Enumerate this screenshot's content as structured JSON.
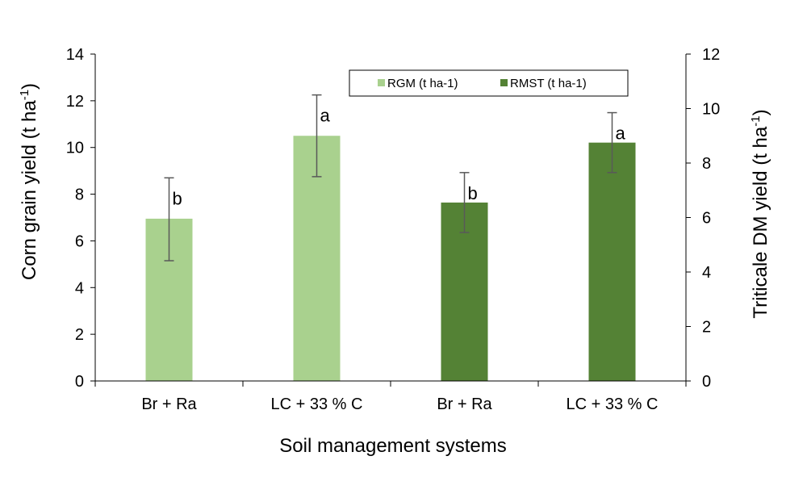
{
  "chart_data": {
    "type": "bar",
    "xlabel": "Soil management systems",
    "ylabel_left": "Corn grain yield (t ha",
    "ylabel_left_sup": "-1",
    "ylabel_left_suffix": ")",
    "ylabel_right": "Triticale DM yield (t ha",
    "ylabel_right_sup": "-1",
    "ylabel_right_suffix": ")",
    "ylim_left": [
      0,
      14
    ],
    "yticks_left": [
      0,
      2,
      4,
      6,
      8,
      10,
      12,
      14
    ],
    "ylim_right": [
      0,
      12
    ],
    "yticks_right": [
      0,
      2,
      4,
      6,
      8,
      10,
      12
    ],
    "categories": [
      "Br + Ra",
      "LC + 33 % C",
      "Br + Ra",
      "LC + 33 % C"
    ],
    "legend_position": "top-right",
    "series": [
      {
        "name": "RGM (t ha-1)",
        "color": "#a9d18e",
        "axis": "left",
        "points": [
          {
            "category_index": 0,
            "value": 6.95,
            "err_low": 5.15,
            "err_high": 8.7,
            "sig": "b"
          },
          {
            "category_index": 1,
            "value": 10.5,
            "err_low": 8.75,
            "err_high": 12.25,
            "sig": "a"
          }
        ]
      },
      {
        "name": "RMST (t ha-1)",
        "color": "#548235",
        "axis": "right",
        "points": [
          {
            "category_index": 2,
            "value": 6.55,
            "err_low": 5.45,
            "err_high": 7.65,
            "sig": "b"
          },
          {
            "category_index": 3,
            "value": 8.75,
            "err_low": 7.65,
            "err_high": 9.85,
            "sig": "a"
          }
        ]
      }
    ]
  }
}
